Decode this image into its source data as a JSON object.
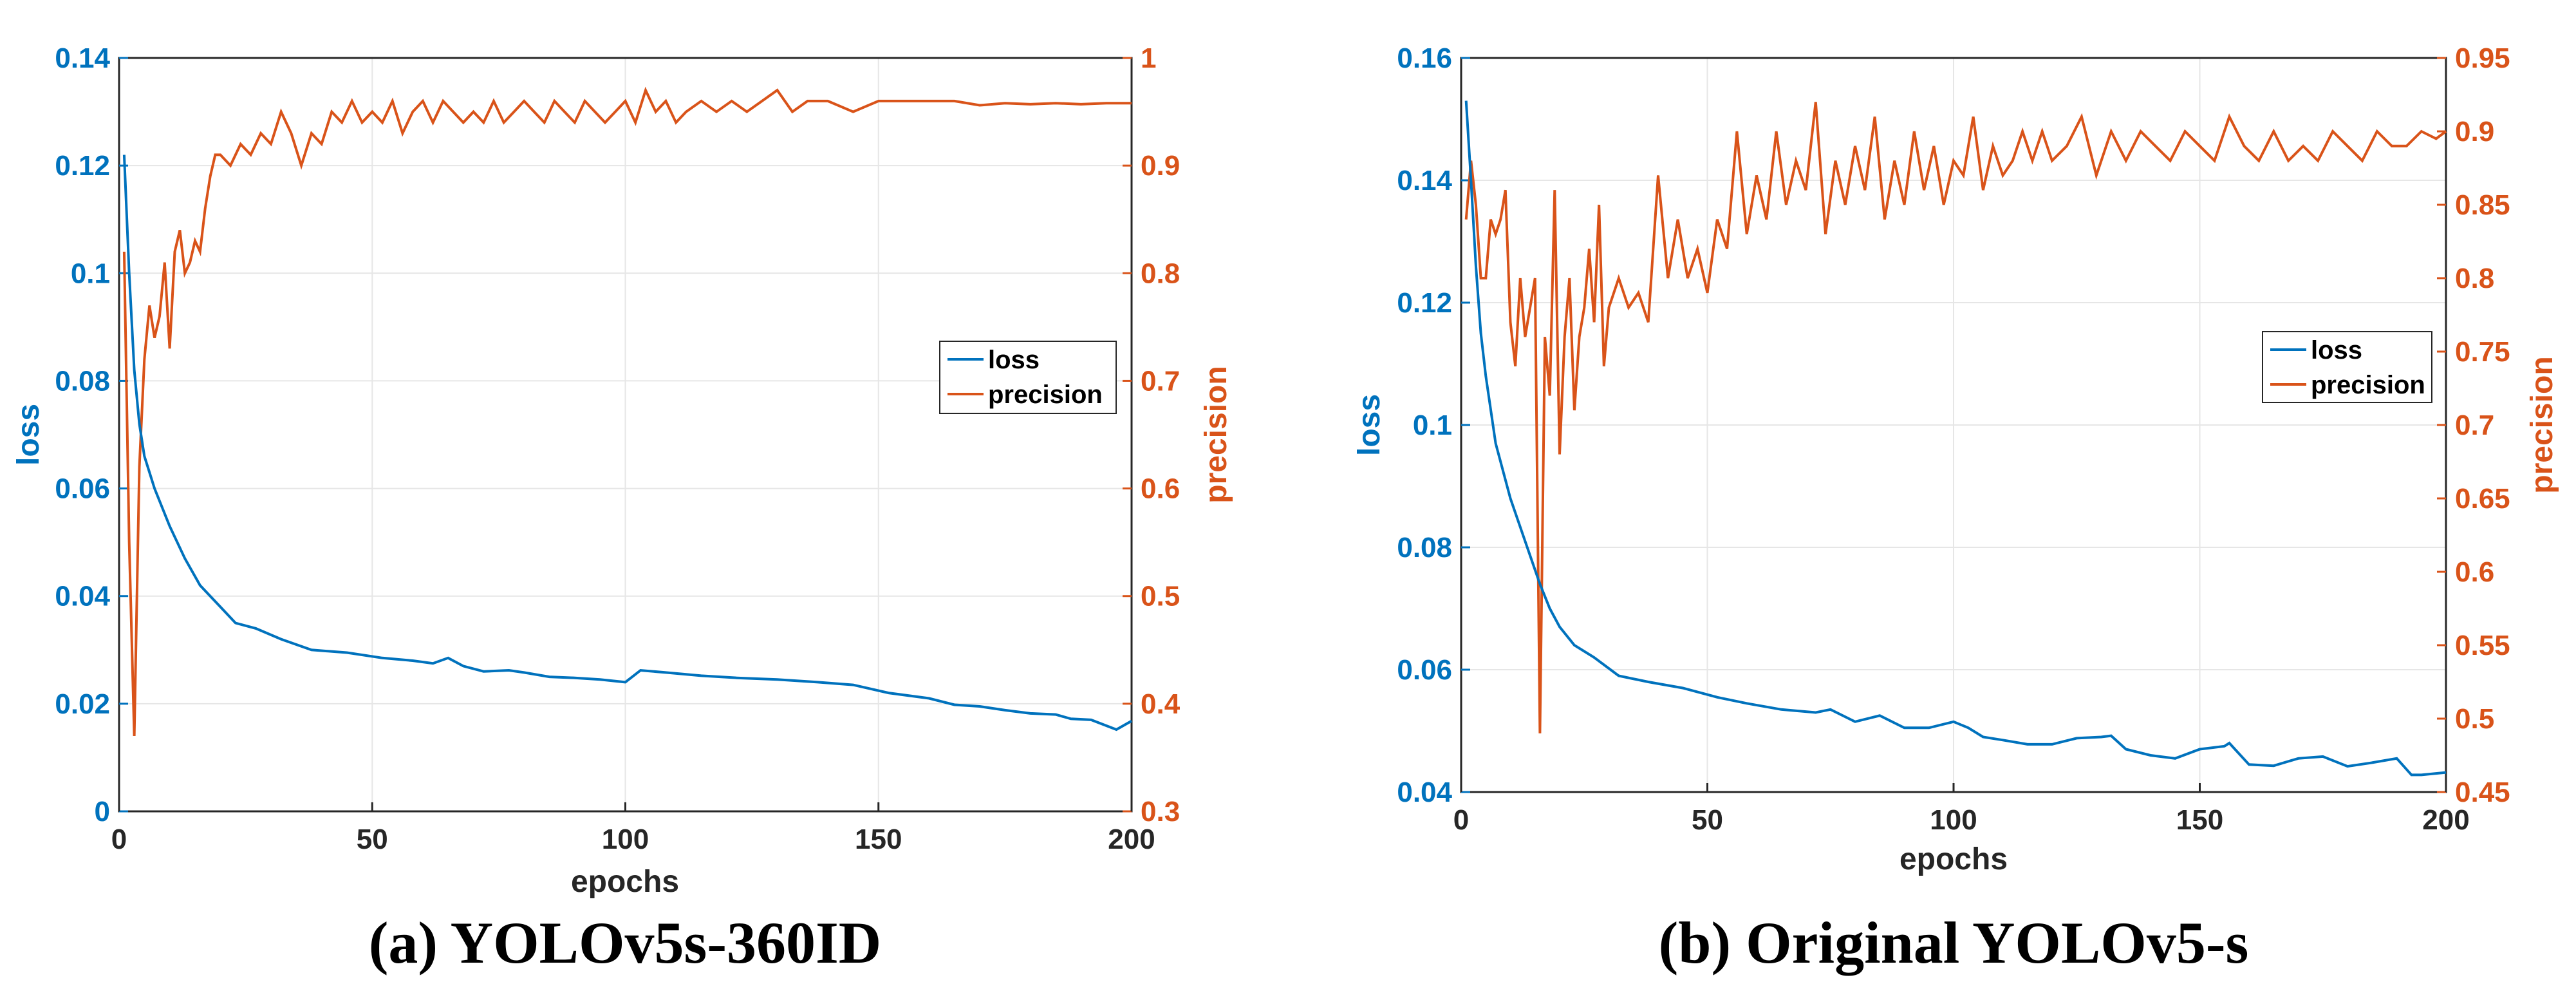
{
  "colors": {
    "loss": "#0072BD",
    "precision": "#D95319",
    "grid": "#E6E6E6",
    "axis": "#262626"
  },
  "chart_data": [
    {
      "type": "line",
      "caption": "(a) YOLOv5s-360ID",
      "xlabel": "epochs",
      "ylabel_left": "loss",
      "ylabel_right": "precision",
      "xlim": [
        0,
        200
      ],
      "ylim_left": [
        0,
        0.14
      ],
      "ylim_right": [
        0.3,
        1
      ],
      "xticks": [
        "0",
        "50",
        "100",
        "150",
        "200"
      ],
      "yticks_left": [
        "0",
        "0.02",
        "0.04",
        "0.06",
        "0.08",
        "0.1",
        "0.12",
        "0.14"
      ],
      "yticks_right": [
        "0.3",
        "0.4",
        "0.5",
        "0.6",
        "0.7",
        "0.8",
        "0.9",
        "1"
      ],
      "legend": [
        "loss",
        "precision"
      ],
      "series": [
        {
          "name": "loss",
          "axis": "left",
          "x": [
            1,
            2,
            3,
            4,
            5,
            7,
            10,
            13,
            16,
            20,
            23,
            27,
            32,
            38,
            45,
            52,
            58,
            62,
            65,
            68,
            72,
            77,
            80,
            85,
            90,
            95,
            100,
            103,
            108,
            115,
            122,
            130,
            138,
            145,
            152,
            160,
            165,
            170,
            175,
            180,
            185,
            188,
            192,
            197,
            200
          ],
          "values": [
            0.122,
            0.1,
            0.082,
            0.072,
            0.066,
            0.06,
            0.053,
            0.047,
            0.042,
            0.038,
            0.035,
            0.034,
            0.032,
            0.03,
            0.0295,
            0.0285,
            0.028,
            0.0275,
            0.0285,
            0.027,
            0.026,
            0.0262,
            0.0258,
            0.025,
            0.0248,
            0.0245,
            0.024,
            0.0262,
            0.0258,
            0.0252,
            0.0248,
            0.0245,
            0.024,
            0.0235,
            0.022,
            0.021,
            0.0198,
            0.0195,
            0.0188,
            0.0182,
            0.018,
            0.0172,
            0.017,
            0.0152,
            0.0168
          ]
        },
        {
          "name": "precision",
          "axis": "right",
          "x": [
            1,
            2,
            3,
            4,
            5,
            6,
            7,
            8,
            9,
            10,
            11,
            12,
            13,
            14,
            15,
            16,
            17,
            18,
            19,
            20,
            22,
            24,
            26,
            28,
            30,
            32,
            34,
            36,
            38,
            40,
            42,
            44,
            46,
            48,
            50,
            52,
            54,
            56,
            58,
            60,
            62,
            64,
            66,
            68,
            70,
            72,
            74,
            76,
            78,
            80,
            82,
            84,
            86,
            88,
            90,
            92,
            94,
            96,
            98,
            100,
            102,
            104,
            106,
            108,
            110,
            112,
            115,
            118,
            121,
            124,
            127,
            130,
            133,
            136,
            140,
            145,
            150,
            155,
            160,
            165,
            170,
            175,
            180,
            185,
            190,
            195,
            200
          ],
          "values": [
            0.82,
            0.55,
            0.37,
            0.62,
            0.72,
            0.77,
            0.74,
            0.76,
            0.81,
            0.73,
            0.82,
            0.84,
            0.8,
            0.81,
            0.83,
            0.82,
            0.86,
            0.89,
            0.91,
            0.91,
            0.9,
            0.92,
            0.91,
            0.93,
            0.92,
            0.95,
            0.93,
            0.9,
            0.93,
            0.92,
            0.95,
            0.94,
            0.96,
            0.94,
            0.95,
            0.94,
            0.96,
            0.93,
            0.95,
            0.96,
            0.94,
            0.96,
            0.95,
            0.94,
            0.95,
            0.94,
            0.96,
            0.94,
            0.95,
            0.96,
            0.95,
            0.94,
            0.96,
            0.95,
            0.94,
            0.96,
            0.95,
            0.94,
            0.95,
            0.96,
            0.94,
            0.97,
            0.95,
            0.96,
            0.94,
            0.95,
            0.96,
            0.95,
            0.96,
            0.95,
            0.96,
            0.97,
            0.95,
            0.96,
            0.96,
            0.95,
            0.96,
            0.96,
            0.96,
            0.96,
            0.956,
            0.958,
            0.957,
            0.958,
            0.957,
            0.958,
            0.958
          ]
        }
      ]
    },
    {
      "type": "line",
      "caption": "(b) Original YOLOv5-s",
      "xlabel": "epochs",
      "ylabel_left": "loss",
      "ylabel_right": "precision",
      "xlim": [
        0,
        200
      ],
      "ylim_left": [
        0.04,
        0.16
      ],
      "ylim_right": [
        0.45,
        0.95
      ],
      "xticks": [
        "0",
        "50",
        "100",
        "150",
        "200"
      ],
      "yticks_left": [
        "0.04",
        "0.06",
        "0.08",
        "0.1",
        "0.12",
        "0.14",
        "0.16"
      ],
      "yticks_right": [
        "0.45",
        "0.5",
        "0.55",
        "0.6",
        "0.65",
        "0.7",
        "0.75",
        "0.8",
        "0.85",
        "0.9",
        "0.95"
      ],
      "legend": [
        "loss",
        "precision"
      ],
      "series": [
        {
          "name": "loss",
          "axis": "left",
          "x": [
            1,
            2,
            3,
            4,
            5,
            7,
            10,
            13,
            16,
            18,
            20,
            23,
            27,
            32,
            38,
            45,
            52,
            58,
            65,
            72,
            75,
            80,
            85,
            90,
            95,
            100,
            103,
            106,
            110,
            115,
            120,
            125,
            130,
            132,
            135,
            140,
            145,
            150,
            155,
            156,
            160,
            165,
            170,
            175,
            180,
            185,
            190,
            193,
            195,
            200
          ],
          "values": [
            0.153,
            0.14,
            0.126,
            0.115,
            0.108,
            0.097,
            0.088,
            0.081,
            0.074,
            0.07,
            0.067,
            0.064,
            0.062,
            0.059,
            0.058,
            0.057,
            0.0555,
            0.0545,
            0.0535,
            0.053,
            0.0535,
            0.0515,
            0.0525,
            0.0505,
            0.0505,
            0.0515,
            0.0505,
            0.049,
            0.0485,
            0.0478,
            0.0478,
            0.0488,
            0.049,
            0.0492,
            0.047,
            0.046,
            0.0455,
            0.047,
            0.0475,
            0.048,
            0.0445,
            0.0443,
            0.0455,
            0.0458,
            0.0442,
            0.0448,
            0.0455,
            0.0428,
            0.0428,
            0.0432
          ]
        },
        {
          "name": "precision",
          "axis": "right",
          "x": [
            1,
            2,
            3,
            4,
            5,
            6,
            7,
            8,
            9,
            10,
            11,
            12,
            13,
            14,
            15,
            16,
            17,
            18,
            19,
            20,
            21,
            22,
            23,
            24,
            25,
            26,
            27,
            28,
            29,
            30,
            32,
            34,
            36,
            38,
            40,
            42,
            44,
            46,
            48,
            50,
            52,
            54,
            56,
            58,
            60,
            62,
            64,
            66,
            68,
            70,
            72,
            74,
            76,
            78,
            80,
            82,
            84,
            86,
            88,
            90,
            92,
            94,
            96,
            98,
            100,
            102,
            104,
            106,
            108,
            110,
            112,
            114,
            116,
            118,
            120,
            123,
            126,
            129,
            132,
            135,
            138,
            141,
            144,
            147,
            150,
            153,
            156,
            159,
            162,
            165,
            168,
            171,
            174,
            177,
            180,
            183,
            186,
            189,
            192,
            195,
            198,
            200
          ],
          "values": [
            0.84,
            0.88,
            0.85,
            0.8,
            0.8,
            0.84,
            0.83,
            0.84,
            0.86,
            0.77,
            0.74,
            0.8,
            0.76,
            0.78,
            0.8,
            0.49,
            0.76,
            0.72,
            0.86,
            0.68,
            0.76,
            0.8,
            0.71,
            0.76,
            0.78,
            0.82,
            0.77,
            0.85,
            0.74,
            0.78,
            0.8,
            0.78,
            0.79,
            0.77,
            0.87,
            0.8,
            0.84,
            0.8,
            0.82,
            0.79,
            0.84,
            0.82,
            0.9,
            0.83,
            0.87,
            0.84,
            0.9,
            0.85,
            0.88,
            0.86,
            0.92,
            0.83,
            0.88,
            0.85,
            0.89,
            0.86,
            0.91,
            0.84,
            0.88,
            0.85,
            0.9,
            0.86,
            0.89,
            0.85,
            0.88,
            0.87,
            0.91,
            0.86,
            0.89,
            0.87,
            0.88,
            0.9,
            0.88,
            0.9,
            0.88,
            0.89,
            0.91,
            0.87,
            0.9,
            0.88,
            0.9,
            0.89,
            0.88,
            0.9,
            0.89,
            0.88,
            0.91,
            0.89,
            0.88,
            0.9,
            0.88,
            0.89,
            0.88,
            0.9,
            0.89,
            0.88,
            0.9,
            0.89,
            0.89,
            0.9,
            0.895,
            0.9
          ]
        }
      ]
    }
  ]
}
